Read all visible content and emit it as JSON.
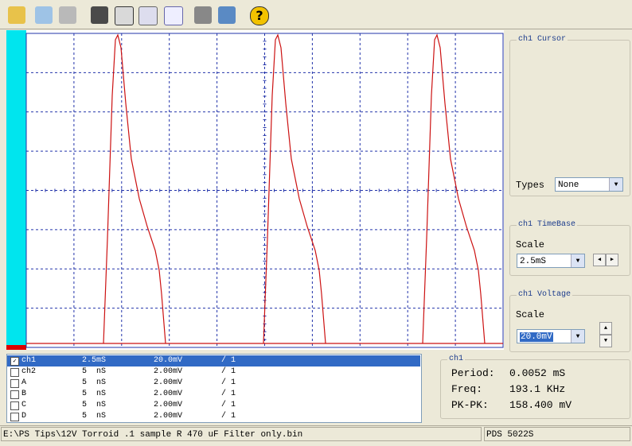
{
  "channel_table": {
    "rows": [
      {
        "name": "ch1",
        "time": "2.5mS",
        "volts": "20.0mV",
        "probe": "/ 1",
        "checked": true
      },
      {
        "name": "ch2",
        "time": "5  nS",
        "volts": "2.00mV",
        "probe": "/ 1",
        "checked": false
      },
      {
        "name": "A",
        "time": "5  nS",
        "volts": "2.00mV",
        "probe": "/ 1",
        "checked": false
      },
      {
        "name": "B",
        "time": "5  nS",
        "volts": "2.00mV",
        "probe": "/ 1",
        "checked": false
      },
      {
        "name": "C",
        "time": "5  nS",
        "volts": "2.00mV",
        "probe": "/ 1",
        "checked": false
      },
      {
        "name": "D",
        "time": "5  nS",
        "volts": "2.00mV",
        "probe": "/ 1",
        "checked": false
      }
    ]
  },
  "cursor_panel": {
    "title": "ch1 Cursor",
    "types_label": "Types",
    "types_value": "None"
  },
  "timebase_panel": {
    "title": "ch1 TimeBase",
    "scale_label": "Scale",
    "scale_value": "2.5mS"
  },
  "voltage_panel": {
    "title": "ch1 Voltage",
    "scale_label": "Scale",
    "scale_value": "20.0mV"
  },
  "measure_panel": {
    "title": "ch1",
    "rows": [
      [
        "Period:",
        "0.0052 mS"
      ],
      [
        "Freq:",
        "193.1 KHz"
      ],
      [
        "PK-PK:",
        "158.400 mV"
      ]
    ]
  },
  "status_bar": {
    "file": "E:\\PS Tips\\12V Torroid .1 sample R 470 uF Filter only.bin",
    "model": "PDS 5022S"
  }
}
